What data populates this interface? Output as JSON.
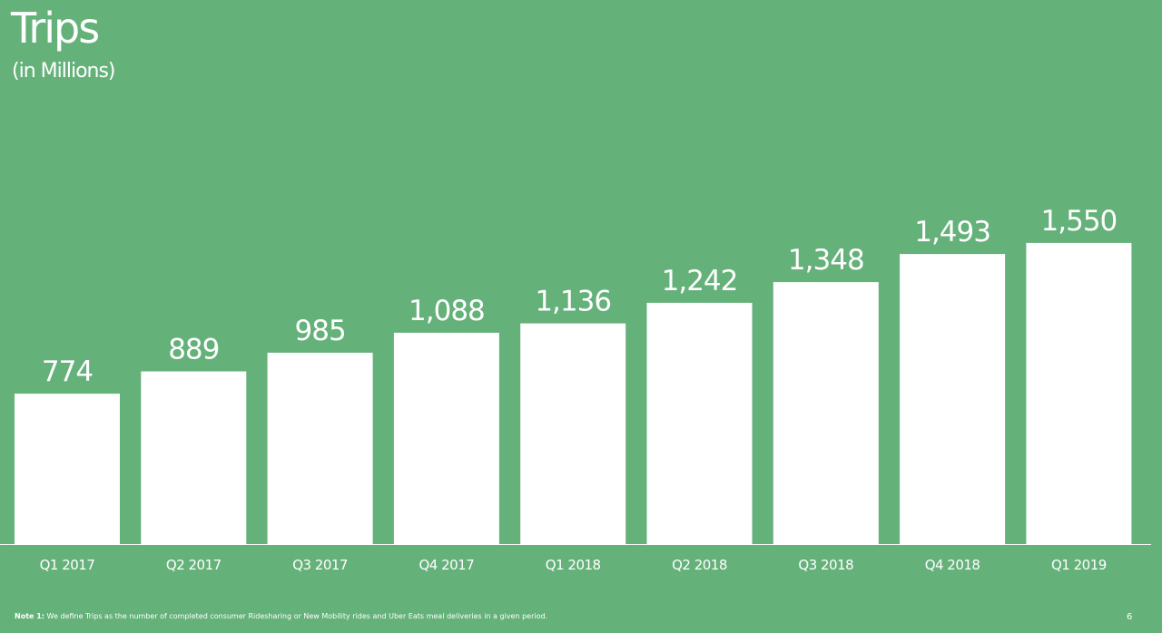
{
  "colors": {
    "background": "#65b17a",
    "bar": "#ffffff",
    "text": "#ffffff",
    "axis": "#ffffff"
  },
  "footnote": {
    "label": "Note 1:",
    "text": "We define Trips as the number of completed consumer Ridesharing or New Mobility rides and Uber Eats meal deliveries in a given period."
  },
  "page_number": "6",
  "chart_data": {
    "type": "bar",
    "title": "Trips",
    "subtitle": "(in Millions)",
    "xlabel": "",
    "ylabel": "",
    "categories": [
      "Q1 2017",
      "Q2 2017",
      "Q3 2017",
      "Q4 2017",
      "Q1 2018",
      "Q2 2018",
      "Q3 2018",
      "Q4 2018",
      "Q1 2019"
    ],
    "values": [
      774,
      889,
      985,
      1088,
      1136,
      1242,
      1348,
      1493,
      1550
    ],
    "value_labels": [
      "774",
      "889",
      "985",
      "1,088",
      "1,136",
      "1,242",
      "1,348",
      "1,493",
      "1,550"
    ],
    "ylim": [
      0,
      2800
    ],
    "grid": false,
    "legend": "none"
  }
}
